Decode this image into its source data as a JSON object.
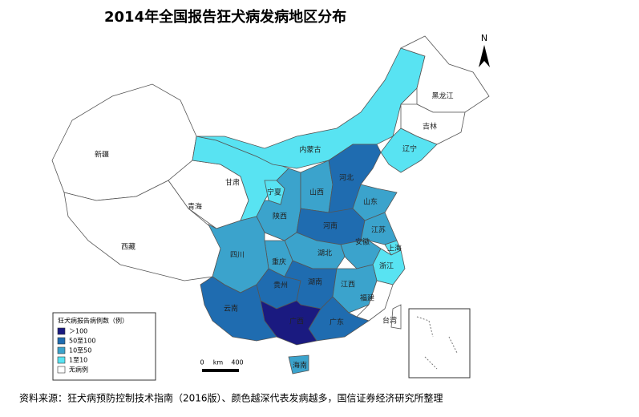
{
  "title": "2014年全国报告狂犬病发病地区分布",
  "north": "N",
  "scale": {
    "start": "0",
    "unit": "km",
    "end": "400"
  },
  "legend": {
    "title": "狂犬病报告病例数（例）",
    "items": [
      {
        "label": "＞100",
        "color": "#1a1a80"
      },
      {
        "label": "50至100",
        "color": "#1f6cb0"
      },
      {
        "label": "10至50",
        "color": "#3ba3cc"
      },
      {
        "label": "1至10",
        "color": "#58e3f2"
      },
      {
        "label": "无病例",
        "color": "#ffffff"
      }
    ]
  },
  "provinces": [
    {
      "name": "新疆",
      "color": "#ffffff"
    },
    {
      "name": "西藏",
      "color": "#ffffff"
    },
    {
      "name": "青海",
      "color": "#ffffff"
    },
    {
      "name": "甘肃",
      "color": "#58e3f2"
    },
    {
      "name": "内蒙古",
      "color": "#58e3f2"
    },
    {
      "name": "黑龙江",
      "color": "#ffffff"
    },
    {
      "name": "吉林",
      "color": "#ffffff"
    },
    {
      "name": "辽宁",
      "color": "#58e3f2"
    },
    {
      "name": "宁夏",
      "color": "#58e3f2"
    },
    {
      "name": "陕西",
      "color": "#3ba3cc"
    },
    {
      "name": "山西",
      "color": "#3ba3cc"
    },
    {
      "name": "河北",
      "color": "#1f6cb0"
    },
    {
      "name": "山东",
      "color": "#3ba3cc"
    },
    {
      "name": "河南",
      "color": "#1f6cb0"
    },
    {
      "name": "江苏",
      "color": "#3ba3cc"
    },
    {
      "name": "安徽",
      "color": "#3ba3cc"
    },
    {
      "name": "上海",
      "color": "#58e3f2"
    },
    {
      "name": "浙江",
      "color": "#58e3f2"
    },
    {
      "name": "湖北",
      "color": "#3ba3cc"
    },
    {
      "name": "重庆",
      "color": "#3ba3cc"
    },
    {
      "name": "四川",
      "color": "#3ba3cc"
    },
    {
      "name": "贵州",
      "color": "#1f6cb0"
    },
    {
      "name": "湖南",
      "color": "#1f6cb0"
    },
    {
      "name": "江西",
      "color": "#3ba3cc"
    },
    {
      "name": "福建",
      "color": "#ffffff"
    },
    {
      "name": "广东",
      "color": "#1f6cb0"
    },
    {
      "name": "广西",
      "color": "#1a1a80"
    },
    {
      "name": "云南",
      "color": "#1f6cb0"
    },
    {
      "name": "海南",
      "color": "#3ba3cc"
    },
    {
      "name": "台湾",
      "color": "#ffffff"
    }
  ],
  "source": "资料来源：狂犬病预防控制技术指南（2016版）、颜色越深代表发病越多，国信证券经济研究所整理"
}
